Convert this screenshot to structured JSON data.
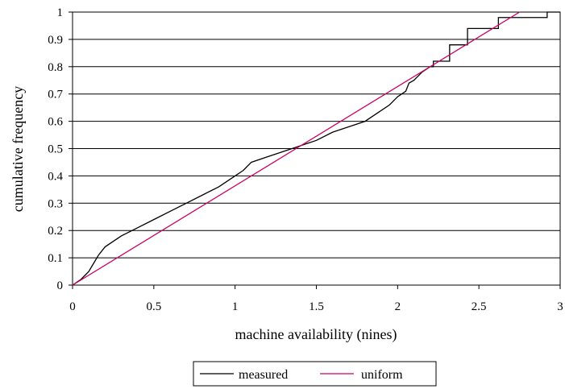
{
  "chart_data": {
    "type": "line",
    "title": "",
    "xlabel": "machine availability (nines)",
    "ylabel": "cumulative frequency",
    "xlim": [
      0,
      3
    ],
    "ylim": [
      0,
      1
    ],
    "xticks": [
      0,
      0.5,
      1,
      1.5,
      2,
      2.5,
      3
    ],
    "xtick_labels": [
      "0",
      "0.5",
      "1",
      "1.5",
      "2",
      "2.5",
      "3"
    ],
    "yticks": [
      0,
      0.1,
      0.2,
      0.3,
      0.4,
      0.5,
      0.6,
      0.7,
      0.8,
      0.9,
      1
    ],
    "ytick_labels": [
      "0",
      "0.1",
      "0.2",
      "0.3",
      "0.4",
      "0.5",
      "0.6",
      "0.7",
      "0.8",
      "0.9",
      "1"
    ],
    "grid": "horizontal",
    "legend_position": "bottom",
    "series": [
      {
        "name": "measured",
        "color": "#000000",
        "step": true,
        "x": [
          0,
          0.05,
          0.1,
          0.13,
          0.16,
          0.2,
          0.3,
          0.4,
          0.5,
          0.6,
          0.7,
          0.8,
          0.9,
          1.0,
          1.05,
          1.1,
          1.2,
          1.3,
          1.4,
          1.5,
          1.6,
          1.7,
          1.8,
          1.85,
          1.9,
          1.95,
          2.0,
          2.05,
          2.07,
          2.1,
          2.15,
          2.2,
          2.22,
          2.3,
          2.32,
          2.4,
          2.43,
          2.5,
          2.6,
          2.62,
          2.8,
          2.92,
          3.0
        ],
        "y": [
          0,
          0.02,
          0.05,
          0.08,
          0.11,
          0.14,
          0.18,
          0.21,
          0.24,
          0.27,
          0.3,
          0.33,
          0.36,
          0.4,
          0.42,
          0.45,
          0.47,
          0.49,
          0.51,
          0.53,
          0.56,
          0.58,
          0.6,
          0.62,
          0.64,
          0.66,
          0.69,
          0.71,
          0.74,
          0.75,
          0.78,
          0.8,
          0.82,
          0.82,
          0.88,
          0.88,
          0.94,
          0.94,
          0.94,
          0.98,
          0.98,
          1.0,
          1.0
        ]
      },
      {
        "name": "uniform",
        "color": "#cc0066",
        "x": [
          0,
          2.75
        ],
        "y": [
          0,
          1.0
        ]
      }
    ]
  }
}
